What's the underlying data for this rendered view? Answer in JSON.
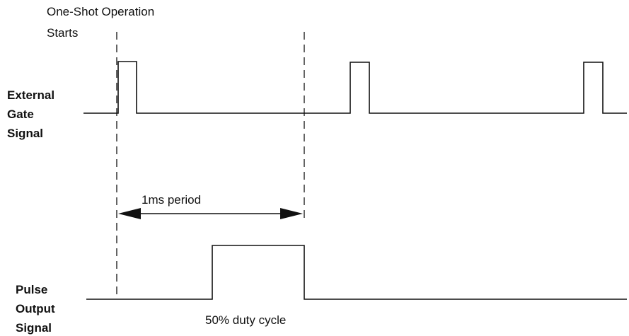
{
  "start_label": {
    "lines": [
      "One-Shot Operation",
      "Starts"
    ]
  },
  "signals": [
    {
      "label": [
        "External",
        "Gate",
        "Signal"
      ]
    },
    {
      "label": [
        "Pulse",
        "Output",
        "Signal"
      ]
    }
  ],
  "period_label": "1ms period",
  "duty_label": "50% duty cycle"
}
